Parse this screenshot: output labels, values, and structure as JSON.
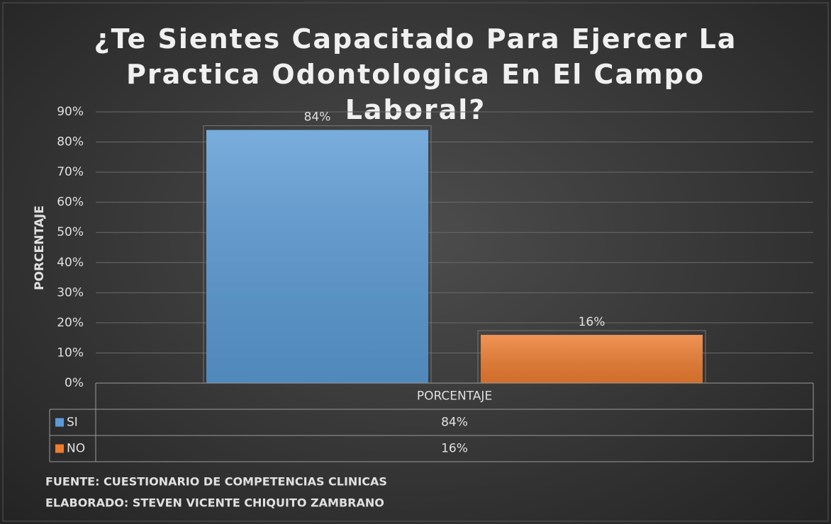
{
  "chart_data": {
    "type": "bar",
    "title": "¿Te Sientes Capacitado Para Ejercer La Practica Odontologica En El Campo Laboral?",
    "y_label": "PORCENTAJE",
    "categories": [
      "PORCENTAJE"
    ],
    "series": [
      {
        "name": "SI",
        "color": "#5b9bd5",
        "values": [
          84
        ],
        "value_labels": [
          "84%"
        ]
      },
      {
        "name": "NO",
        "color": "#ed7d31",
        "values": [
          16
        ],
        "value_labels": [
          "16%"
        ]
      }
    ],
    "ylim": [
      0,
      90
    ],
    "yticks": [
      {
        "value": 0,
        "label": "0%"
      },
      {
        "value": 10,
        "label": "10%"
      },
      {
        "value": 20,
        "label": "20%"
      },
      {
        "value": 30,
        "label": "30%"
      },
      {
        "value": 40,
        "label": "40%"
      },
      {
        "value": 50,
        "label": "50%"
      },
      {
        "value": 60,
        "label": "60%"
      },
      {
        "value": 70,
        "label": "70%"
      },
      {
        "value": 80,
        "label": "80%"
      },
      {
        "value": 90,
        "label": "90%"
      }
    ],
    "grid": true,
    "data_table": true,
    "footnotes": [
      "FUENTE: CUESTIONARIO DE COMPETENCIAS CLINICAS",
      "ELABORADO: STEVEN VICENTE CHIQUITO ZAMBRANO"
    ]
  }
}
